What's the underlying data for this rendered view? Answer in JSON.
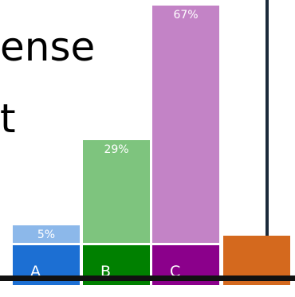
{
  "background_text": [
    "ense",
    "t"
  ],
  "chart_data": {
    "type": "bar",
    "categories": [
      "A",
      "B",
      "C",
      ""
    ],
    "values": [
      5,
      29,
      67,
      0
    ],
    "value_labels": [
      "5%",
      "29%",
      "67%",
      ""
    ],
    "bar_colors": [
      "#8cb8ea",
      "#7ec47e",
      "#c383c6",
      "#d4691e"
    ],
    "category_colors": [
      "#1c6fd3",
      "#008000",
      "#8b008b",
      "#d4691e"
    ],
    "ylim": [
      0,
      67
    ]
  }
}
